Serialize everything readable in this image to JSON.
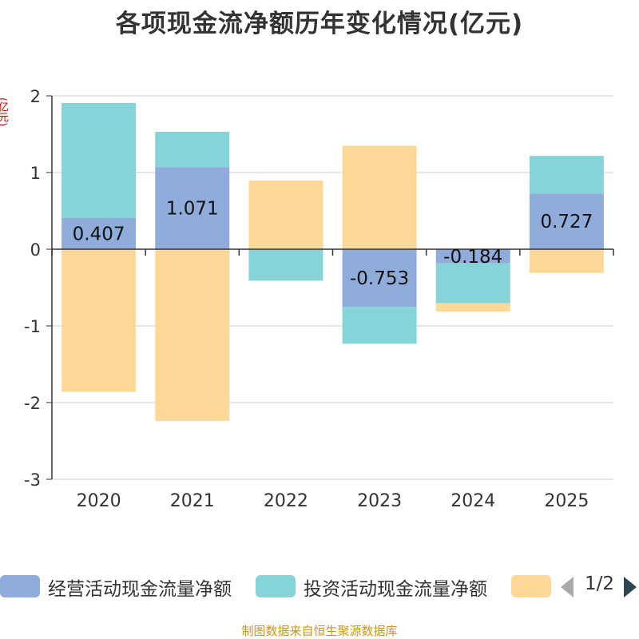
{
  "chart_data": {
    "type": "bar",
    "stacked": true,
    "title": "各项现金流净额历年变化情况(亿元)",
    "ylabel": "(亿元)",
    "categories": [
      "2020",
      "2021",
      "2022",
      "2023",
      "2024",
      "2025"
    ],
    "ylim": [
      -3,
      2
    ],
    "yticks": [
      2,
      1,
      0,
      -1,
      -2,
      -3
    ],
    "series": [
      {
        "name": "经营活动现金流量净额",
        "color": "#8facdb",
        "values": [
          0.407,
          1.071,
          0.005,
          -0.753,
          -0.184,
          0.727
        ],
        "labels": [
          "0.407",
          "1.071",
          "",
          "-0.753",
          "-0.184",
          "0.727"
        ]
      },
      {
        "name": "投资活动现金流量净额",
        "color": "#86d4d8",
        "values": [
          1.5,
          0.46,
          -0.41,
          -0.48,
          -0.52,
          0.49
        ]
      },
      {
        "name": "",
        "color": "#fed898",
        "values": [
          -1.86,
          -2.24,
          0.89,
          1.35,
          -0.11,
          -0.31
        ]
      }
    ]
  },
  "legend": {
    "items": [
      {
        "label": "经营活动现金流量净额",
        "color": "#8facdb"
      },
      {
        "label": "投资活动现金流量净额",
        "color": "#86d4d8"
      },
      {
        "label": "",
        "color": "#fed898"
      }
    ],
    "page": "1/2"
  },
  "source": "制图数据来自恒生聚源数据库"
}
